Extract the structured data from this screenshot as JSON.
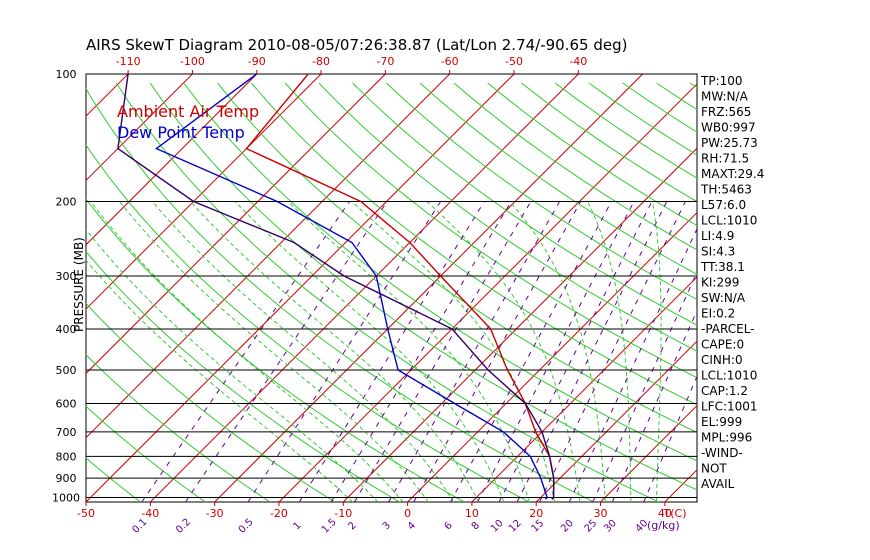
{
  "chart_data": {
    "type": "skewt",
    "title": "AIRS SkewT Diagram 2010-08-05/07:26:38.87 (Lat/Lon 2.74/-90.65 deg)",
    "ylabel": "PRESSURE (MB)",
    "legend": [
      {
        "name": "Ambient Air Temp",
        "color": "#cc0000"
      },
      {
        "name": "Dew Point Temp",
        "color": "#0000cc"
      }
    ],
    "pressure_ticks": [
      100,
      200,
      300,
      400,
      500,
      600,
      700,
      800,
      900,
      1000
    ],
    "top_temp_ticks": [
      "-120",
      "-110",
      "-100",
      "-90",
      "-80",
      "-70",
      "-60",
      "-50",
      "-40"
    ],
    "bottom_temp_ticks": [
      "-50",
      "-40",
      "-30",
      "-20",
      "-10",
      "0",
      "10",
      "20",
      "30",
      "40"
    ],
    "bottom_unit_label": "T(C)",
    "mixing_ratio_ticks": [
      "0.1",
      "0.2",
      "0.5",
      "1",
      "1.5",
      "2",
      "3",
      "4",
      "6",
      "8",
      "10",
      "12",
      "15",
      "20",
      "25",
      "30",
      "40"
    ],
    "mixing_unit_label": "(g/kg)",
    "ylim": [
      100,
      1025
    ],
    "temp_surface_range": [
      -50,
      45
    ],
    "series": [
      {
        "name": "Ambient Air Temp",
        "color": "#cc0000",
        "points": [
          {
            "p": 100,
            "t": -82
          },
          {
            "p": 150,
            "t": -80
          },
          {
            "p": 200,
            "t": -54
          },
          {
            "p": 250,
            "t": -40
          },
          {
            "p": 300,
            "t": -30
          },
          {
            "p": 400,
            "t": -14
          },
          {
            "p": 500,
            "t": -5
          },
          {
            "p": 600,
            "t": 3
          },
          {
            "p": 700,
            "t": 9
          },
          {
            "p": 800,
            "t": 15
          },
          {
            "p": 900,
            "t": 19
          },
          {
            "p": 1000,
            "t": 22
          },
          {
            "p": 1010,
            "t": 22
          }
        ]
      },
      {
        "name": "Dew Point Temp",
        "color": "#0000cc",
        "points": [
          {
            "p": 100,
            "t": -90
          },
          {
            "p": 150,
            "t": -94
          },
          {
            "p": 200,
            "t": -67
          },
          {
            "p": 250,
            "t": -49
          },
          {
            "p": 300,
            "t": -40
          },
          {
            "p": 400,
            "t": -30
          },
          {
            "p": 500,
            "t": -22
          },
          {
            "p": 600,
            "t": -8
          },
          {
            "p": 700,
            "t": 4
          },
          {
            "p": 800,
            "t": 12
          },
          {
            "p": 900,
            "t": 17
          },
          {
            "p": 1000,
            "t": 21
          },
          {
            "p": 1010,
            "t": 21
          }
        ]
      },
      {
        "name": "Parcel",
        "color": "#330066",
        "points": [
          {
            "p": 100,
            "t": -110
          },
          {
            "p": 150,
            "t": -100
          },
          {
            "p": 200,
            "t": -80
          },
          {
            "p": 250,
            "t": -58
          },
          {
            "p": 300,
            "t": -45
          },
          {
            "p": 400,
            "t": -20
          },
          {
            "p": 500,
            "t": -8
          },
          {
            "p": 600,
            "t": 3
          },
          {
            "p": 700,
            "t": 10
          },
          {
            "p": 800,
            "t": 15
          },
          {
            "p": 900,
            "t": 19
          },
          {
            "p": 1000,
            "t": 22
          },
          {
            "p": 1010,
            "t": 22
          }
        ]
      }
    ],
    "indices": [
      "TP:100",
      "MW:N/A",
      "FRZ:565",
      "WB0:997",
      "PW:25.73",
      "RH:71.5",
      "MAXT:29.4",
      "TH:5463",
      "L57:6.0",
      "LCL:1010",
      "LI:4.9",
      "SI:4.3",
      "TT:38.1",
      "KI:299",
      "SW:N/A",
      "EI:0.2",
      "-PARCEL-",
      "CAPE:0",
      "CINH:0",
      "LCL:1010",
      "CAP:1.2",
      "LFC:1001",
      "EL:999",
      "MPL:996",
      "-WIND-",
      "NOT",
      "AVAIL"
    ]
  }
}
